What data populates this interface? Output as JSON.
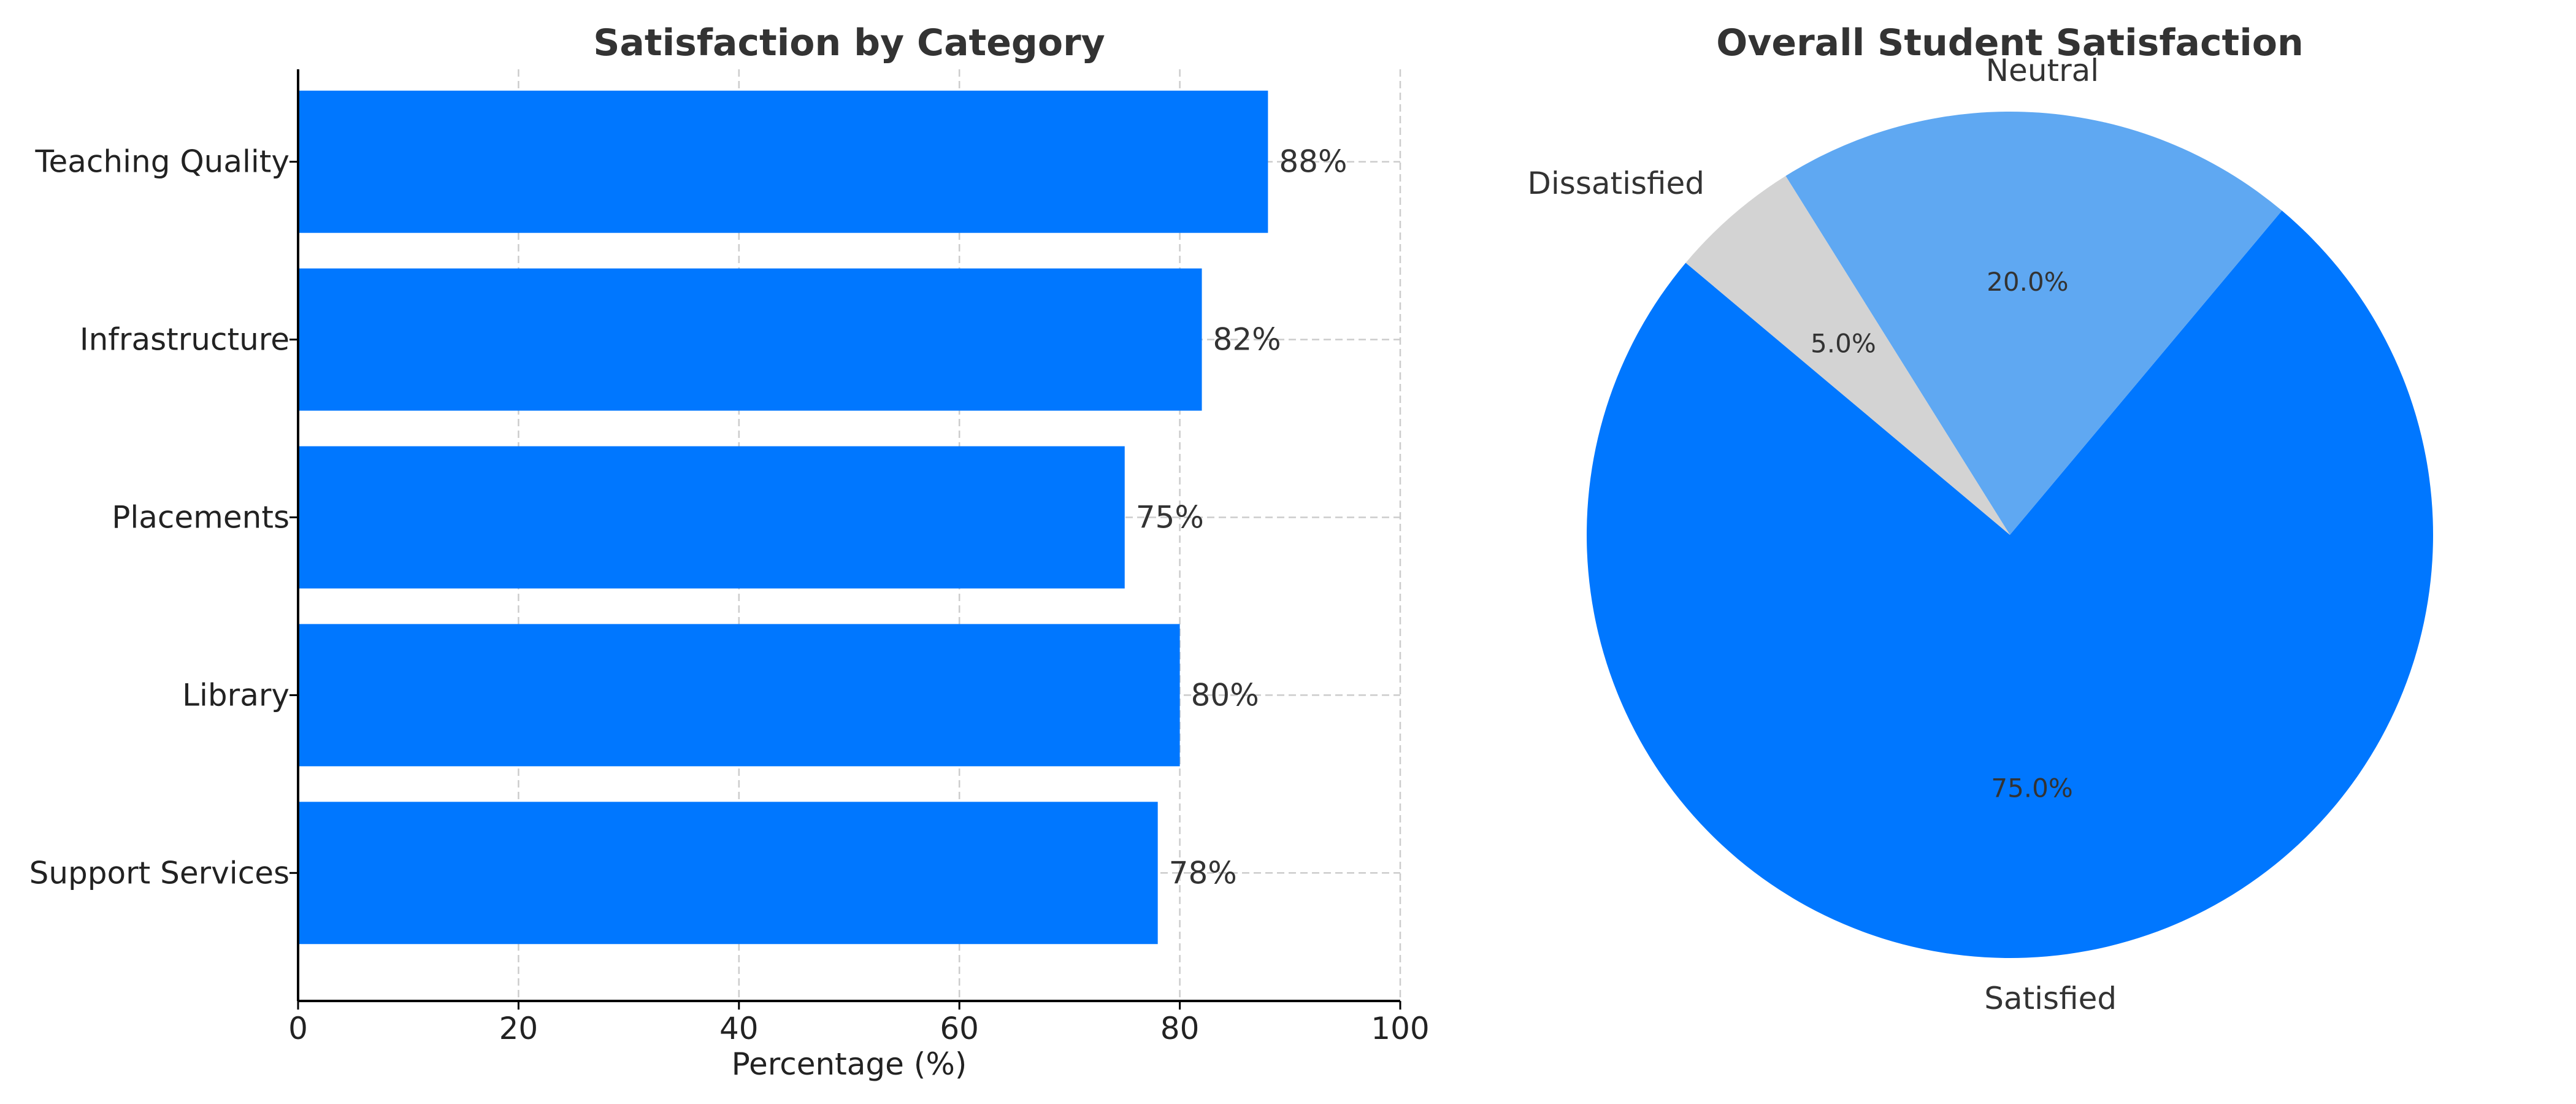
{
  "chart_data": [
    {
      "type": "bar",
      "orientation": "horizontal",
      "title": "Satisfaction by Category",
      "categories": [
        "Teaching Quality",
        "Infrastructure",
        "Placements",
        "Library",
        "Support Services"
      ],
      "values": [
        88,
        82,
        75,
        80,
        78
      ],
      "value_labels": [
        "88%",
        "82%",
        "75%",
        "80%",
        "78%"
      ],
      "xlabel": "Percentage (%)",
      "ylabel": "",
      "xlim": [
        0,
        100
      ],
      "xticks": [
        0,
        20,
        40,
        60,
        80,
        100
      ],
      "xtick_labels": [
        "0",
        "20",
        "40",
        "60",
        "80",
        "100"
      ],
      "grid": true,
      "color": "#0077ff"
    },
    {
      "type": "pie",
      "title": "Overall Student Satisfaction",
      "labels": [
        "Satisfied",
        "Neutral",
        "Dissatisfied"
      ],
      "values": [
        75,
        20,
        5
      ],
      "pct_labels": [
        "75.0%",
        "20.0%",
        "5.0%"
      ],
      "colors": [
        "#0077ff",
        "#5fa8f2",
        "#d3d3d3"
      ],
      "start_angle": 140
    }
  ]
}
